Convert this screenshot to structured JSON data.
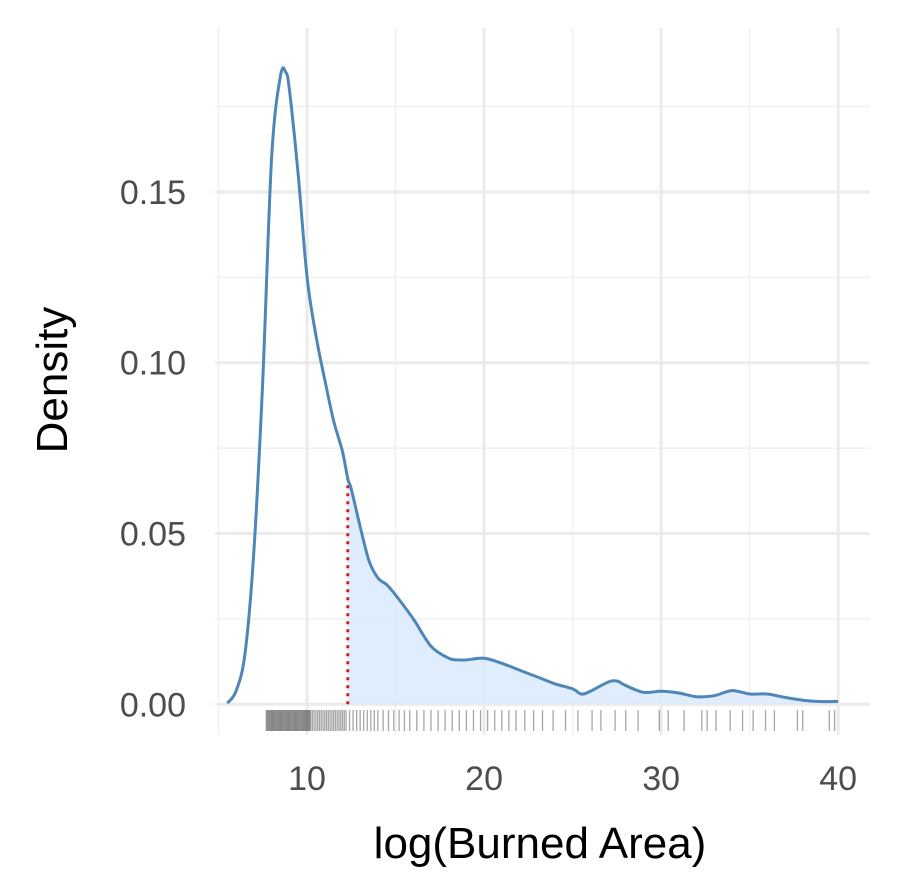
{
  "chart_data": {
    "type": "area",
    "xlabel": "log(Burned Area)",
    "ylabel": "Density",
    "xlim": [
      4.8,
      41.8
    ],
    "ylim": [
      -0.009,
      0.198
    ],
    "x_ticks": [
      10,
      20,
      30,
      40
    ],
    "x_tick_labels": [
      "10",
      "20",
      "30",
      "40"
    ],
    "y_ticks": [
      0.0,
      0.05,
      0.1,
      0.15
    ],
    "y_tick_labels": [
      "0.00",
      "0.05",
      "0.10",
      "0.15"
    ],
    "x_minor_ticks": [
      5,
      15,
      25,
      35
    ],
    "y_minor_ticks": [
      0.025,
      0.075,
      0.125,
      0.175
    ],
    "grid": true,
    "legend": "none",
    "threshold_x": 12.3,
    "density": {
      "x": [
        5.5,
        6.0,
        6.5,
        7.0,
        7.5,
        8.0,
        8.5,
        8.8,
        9.0,
        9.5,
        10.0,
        10.5,
        11.0,
        11.5,
        12.0,
        12.3,
        12.5,
        13.0,
        13.5,
        14.0,
        14.5,
        15.0,
        16.0,
        17.0,
        18.0,
        18.5,
        19.0,
        20.0,
        21.0,
        22.0,
        23.0,
        24.0,
        25.0,
        25.5,
        26.0,
        27.0,
        27.5,
        28.0,
        29.0,
        30.0,
        31.0,
        32.0,
        33.0,
        34.0,
        35.0,
        36.0,
        37.0,
        38.0,
        39.0,
        40.0
      ],
      "y": [
        0.0003,
        0.004,
        0.015,
        0.045,
        0.095,
        0.16,
        0.184,
        0.185,
        0.18,
        0.155,
        0.125,
        0.108,
        0.095,
        0.083,
        0.074,
        0.066,
        0.063,
        0.052,
        0.042,
        0.037,
        0.035,
        0.032,
        0.025,
        0.017,
        0.0135,
        0.013,
        0.013,
        0.0135,
        0.012,
        0.01,
        0.008,
        0.006,
        0.0045,
        0.003,
        0.0038,
        0.0065,
        0.0068,
        0.0055,
        0.0035,
        0.0038,
        0.0033,
        0.0022,
        0.0025,
        0.004,
        0.003,
        0.003,
        0.002,
        0.0012,
        0.0008,
        0.0008
      ]
    },
    "rug": [
      7.7,
      7.75,
      7.8,
      7.85,
      7.9,
      7.95,
      8.0,
      8.05,
      8.1,
      8.15,
      8.2,
      8.25,
      8.3,
      8.35,
      8.4,
      8.45,
      8.5,
      8.55,
      8.6,
      8.65,
      8.7,
      8.75,
      8.8,
      8.85,
      8.9,
      8.95,
      9.0,
      9.05,
      9.1,
      9.15,
      9.2,
      9.25,
      9.3,
      9.35,
      9.4,
      9.45,
      9.5,
      9.55,
      9.6,
      9.65,
      9.7,
      9.75,
      9.8,
      9.85,
      9.9,
      9.95,
      10.0,
      10.05,
      10.1,
      10.15,
      10.2,
      10.3,
      10.4,
      10.5,
      10.6,
      10.7,
      10.8,
      10.9,
      11.0,
      11.1,
      11.2,
      11.3,
      11.4,
      11.5,
      11.6,
      11.7,
      11.8,
      11.9,
      12.0,
      12.1,
      12.2,
      12.4,
      12.6,
      12.8,
      13.0,
      13.2,
      13.4,
      13.6,
      13.8,
      14.0,
      14.3,
      14.6,
      14.9,
      15.2,
      15.5,
      15.8,
      16.2,
      16.6,
      17.0,
      17.4,
      17.8,
      18.2,
      18.6,
      19.0,
      19.4,
      19.8,
      20.2,
      20.6,
      21.0,
      21.4,
      21.8,
      22.3,
      22.8,
      23.3,
      23.9,
      24.6,
      25.3,
      26.1,
      26.6,
      27.4,
      28.0,
      28.7,
      29.9,
      30.4,
      31.3,
      32.3,
      32.6,
      33.1,
      33.9,
      34.6,
      35.2,
      35.9,
      36.4,
      37.7,
      38.0,
      39.5,
      39.8
    ]
  }
}
